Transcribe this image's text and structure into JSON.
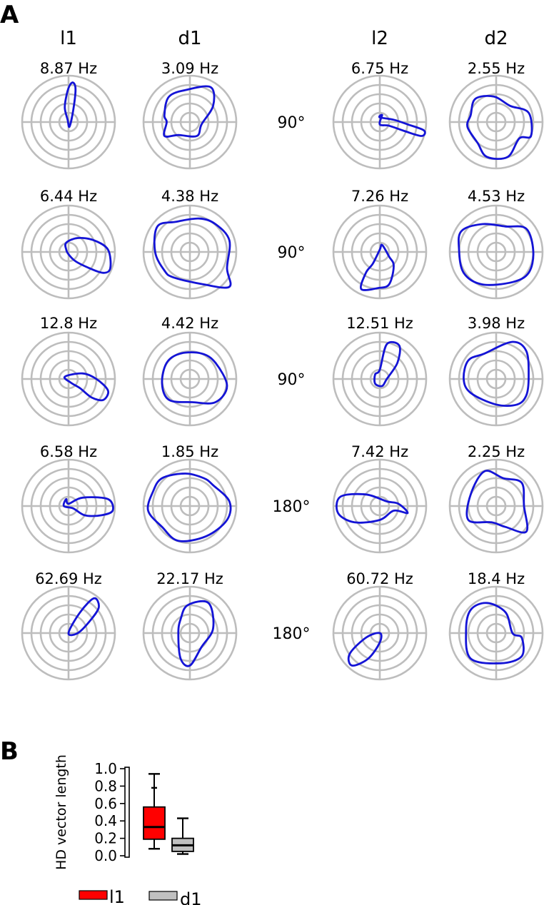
{
  "panel_a": {
    "letter": "A",
    "columns": [
      "l1",
      "d1",
      "l2",
      "d2"
    ],
    "rows": [
      {
        "rates": [
          "8.87 Hz",
          "3.09 Hz",
          "6.75 Hz",
          "2.55 Hz"
        ],
        "angle": "90°"
      },
      {
        "rates": [
          "6.44 Hz",
          "4.38 Hz",
          "7.26 Hz",
          "4.53 Hz"
        ],
        "angle": "90°"
      },
      {
        "rates": [
          "12.8 Hz",
          "4.42 Hz",
          "12.51 Hz",
          "3.98 Hz"
        ],
        "angle": "90°"
      },
      {
        "rates": [
          "6.58 Hz",
          "1.85 Hz",
          "7.42 Hz",
          "2.25 Hz"
        ],
        "angle": "180°"
      },
      {
        "rates": [
          "62.69 Hz",
          "22.17 Hz",
          "60.72 Hz",
          "18.4 Hz"
        ],
        "angle": "180°"
      }
    ]
  },
  "panel_b": {
    "letter": "B"
  },
  "chart_data": {
    "type": "box",
    "ylabel": "HD vector length",
    "ylim": [
      0.0,
      1.0
    ],
    "yticks": [
      "0.0",
      "0.2",
      "0.4",
      "0.6",
      "0.8",
      "1.0"
    ],
    "series": [
      {
        "name": "l1",
        "color": "#ff0000",
        "whisker_low": 0.08,
        "q1": 0.19,
        "median": 0.33,
        "q3": 0.56,
        "whisker_high": 0.94,
        "outliers": [
          0.78
        ]
      },
      {
        "name": "d1",
        "color": "#c0c0c0",
        "whisker_low": 0.02,
        "q1": 0.05,
        "median": 0.12,
        "q3": 0.2,
        "whisker_high": 0.43,
        "outliers": []
      }
    ],
    "legend": [
      "l1",
      "d1"
    ]
  }
}
